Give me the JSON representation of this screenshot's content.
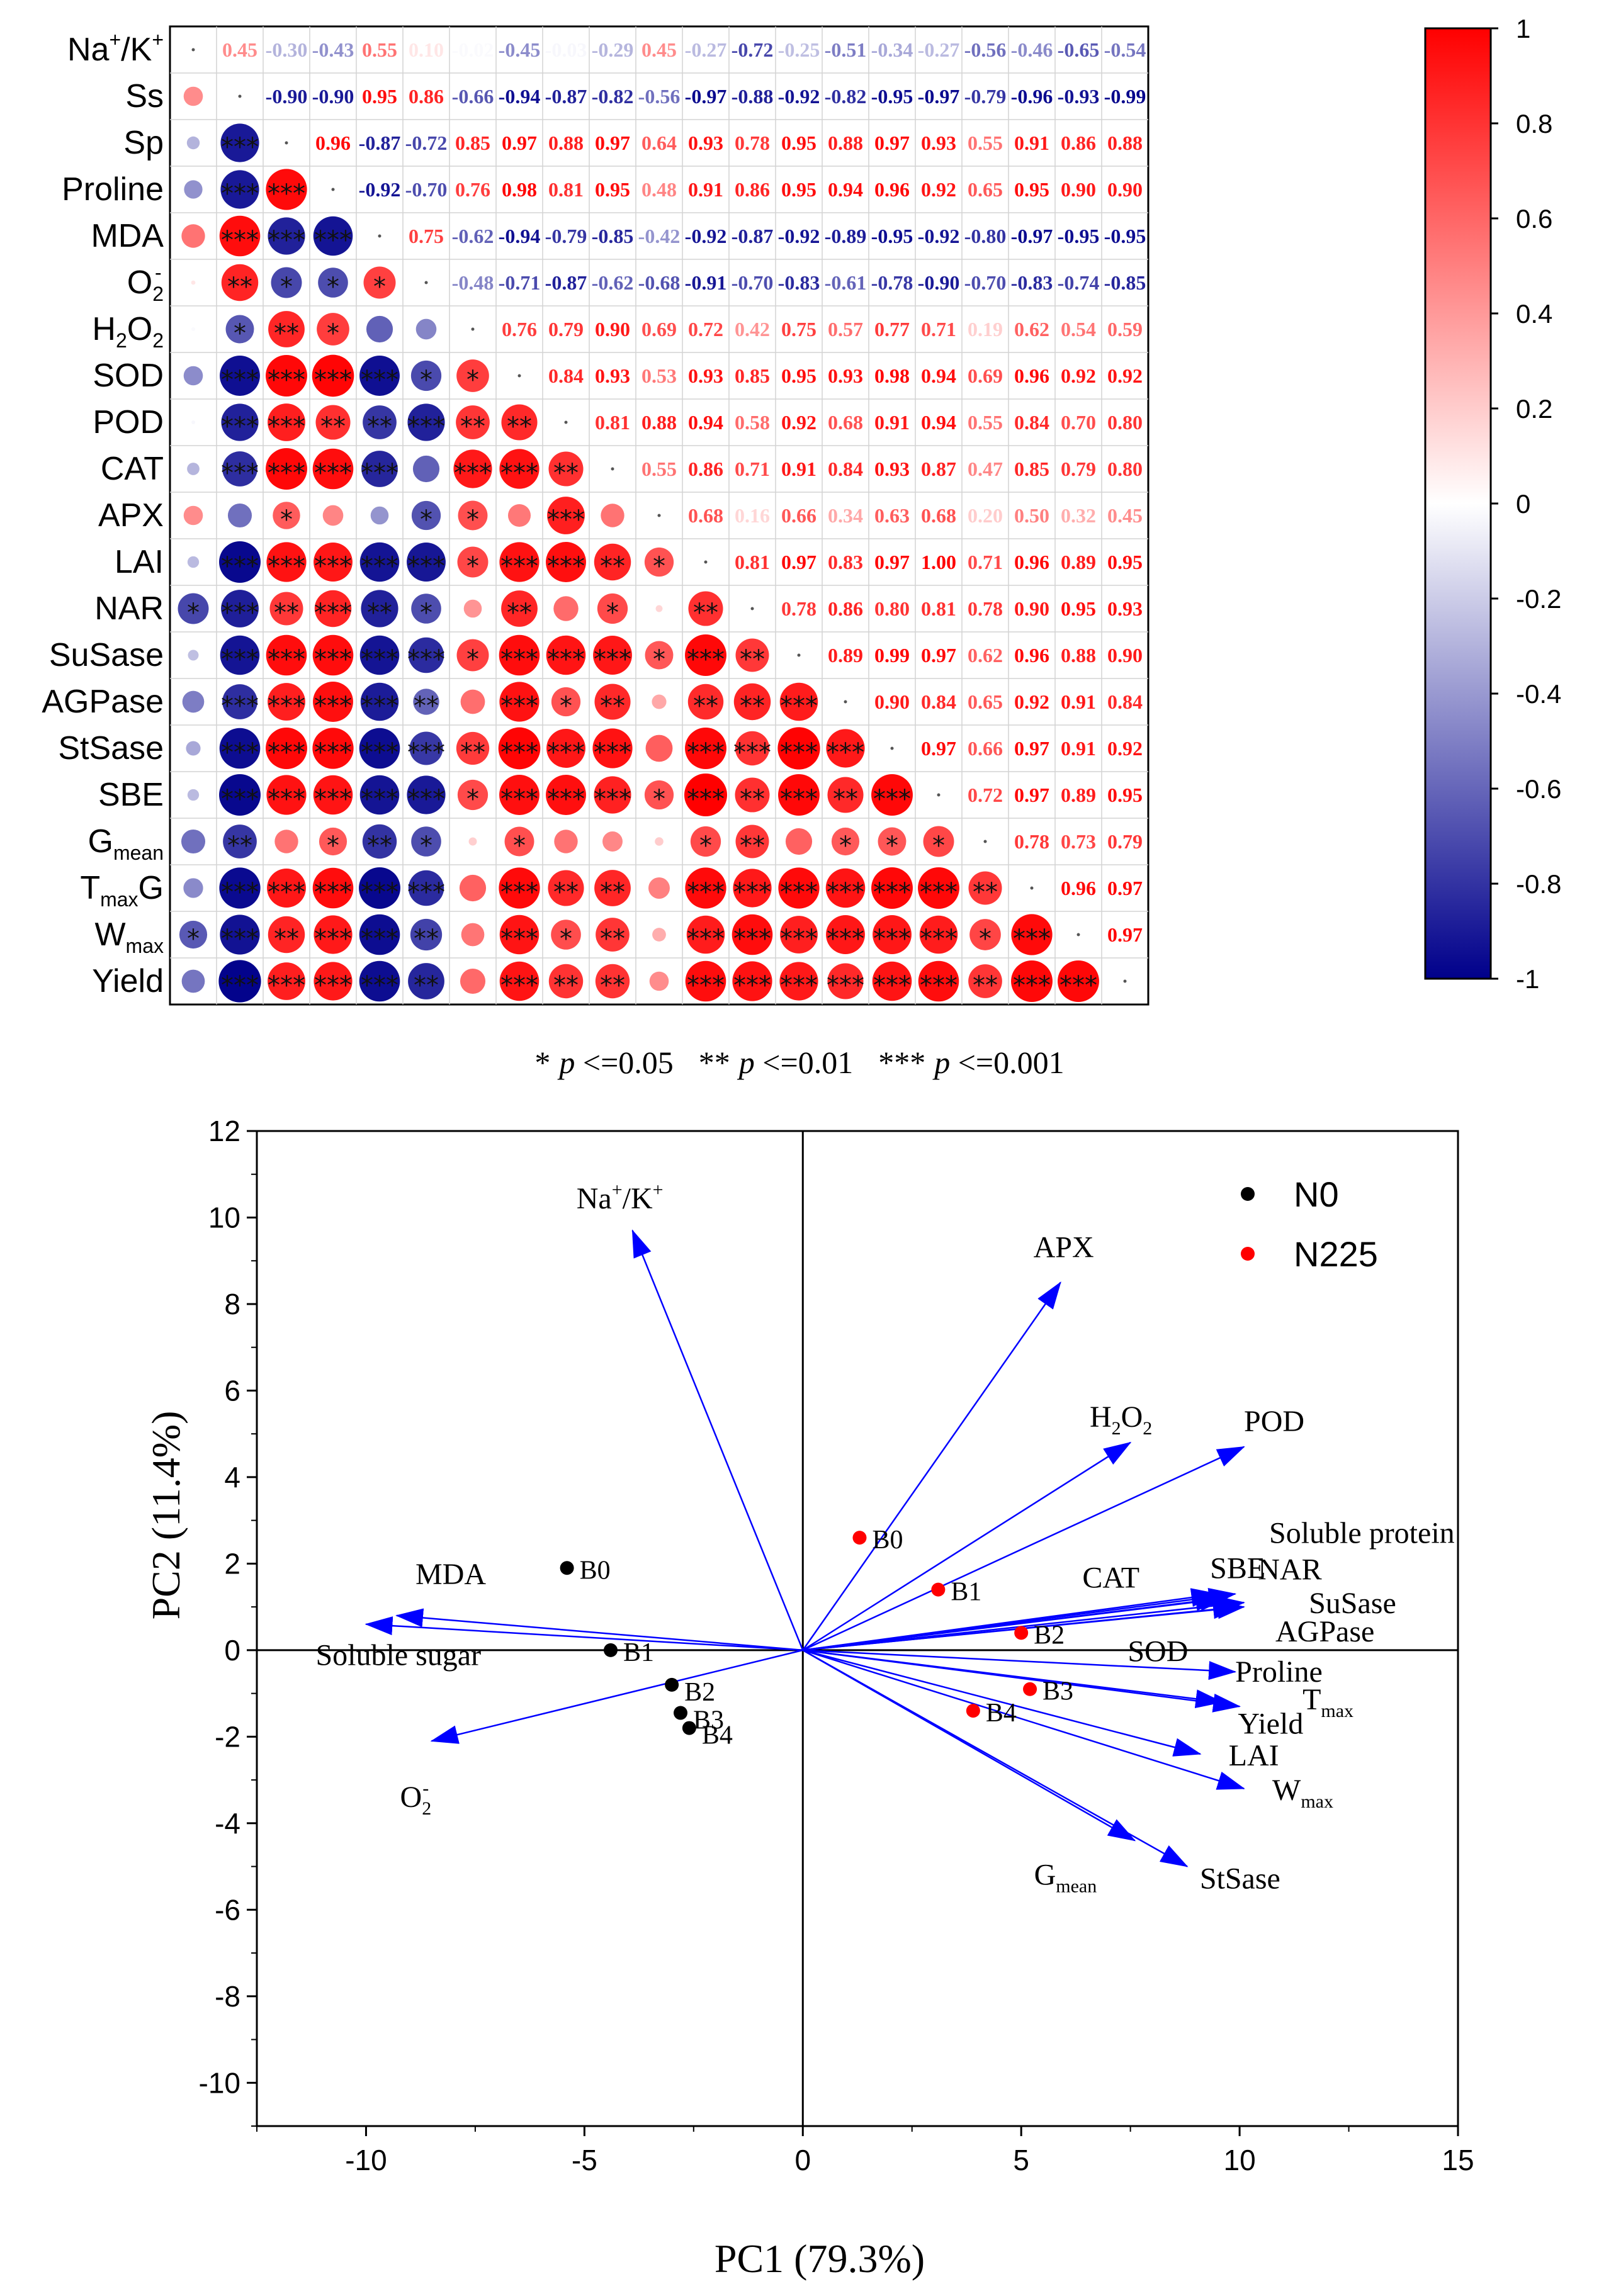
{
  "chart_data": [
    {
      "type": "heatmap",
      "title": "",
      "variables": [
        "Na+/K+",
        "Ss",
        "Sp",
        "Proline",
        "MDA",
        "O2-",
        "H2O2",
        "SOD",
        "POD",
        "CAT",
        "APX",
        "LAI",
        "NAR",
        "SuSase",
        "AGPase",
        "StSase",
        "SBE",
        "Gmean",
        "TmaxG",
        "Wmax",
        "Yield"
      ],
      "row_labels": [
        {
          "main": "Na",
          "sup": "+",
          "tail": "/K",
          "sup2": "+"
        },
        {
          "main": "Ss"
        },
        {
          "main": "Sp"
        },
        {
          "main": "Proline"
        },
        {
          "main": "MDA"
        },
        {
          "main": "O",
          "sub": "2",
          "sup": "-"
        },
        {
          "main": "H",
          "sub": "2",
          "tail": "O",
          "sub2": "2"
        },
        {
          "main": "SOD"
        },
        {
          "main": "POD"
        },
        {
          "main": "CAT"
        },
        {
          "main": "APX"
        },
        {
          "main": "LAI"
        },
        {
          "main": "NAR"
        },
        {
          "main": "SuSase"
        },
        {
          "main": "AGPase"
        },
        {
          "main": "StSase"
        },
        {
          "main": "SBE"
        },
        {
          "main": "G",
          "sub": "mean"
        },
        {
          "main": "T",
          "sub": "max",
          "tail": "G"
        },
        {
          "main": "W",
          "sub": "max"
        },
        {
          "main": "Yield"
        }
      ],
      "upper_values": [
        [
          0.45,
          -0.3,
          -0.43,
          0.55,
          0.1,
          -0.02,
          -0.45,
          -0.03,
          -0.29,
          0.45,
          -0.27,
          -0.72,
          -0.25,
          -0.51,
          -0.34,
          -0.27,
          -0.56,
          -0.46,
          -0.65,
          -0.54
        ],
        [
          -0.9,
          -0.9,
          0.95,
          0.86,
          -0.66,
          -0.94,
          -0.87,
          -0.82,
          -0.56,
          -0.97,
          -0.88,
          -0.92,
          -0.82,
          -0.95,
          -0.97,
          -0.79,
          -0.96,
          -0.93,
          -0.99
        ],
        [
          0.96,
          -0.87,
          -0.72,
          0.85,
          0.97,
          0.88,
          0.97,
          0.64,
          0.93,
          0.78,
          0.95,
          0.88,
          0.97,
          0.93,
          0.55,
          0.91,
          0.86,
          0.88
        ],
        [
          -0.92,
          -0.7,
          0.76,
          0.98,
          0.81,
          0.95,
          0.48,
          0.91,
          0.86,
          0.95,
          0.94,
          0.96,
          0.92,
          0.65,
          0.95,
          0.9,
          0.9
        ],
        [
          0.75,
          -0.62,
          -0.94,
          -0.79,
          -0.85,
          -0.42,
          -0.92,
          -0.87,
          -0.92,
          -0.89,
          -0.95,
          -0.92,
          -0.8,
          -0.97,
          -0.95,
          -0.95
        ],
        [
          -0.48,
          -0.71,
          -0.87,
          -0.62,
          -0.68,
          -0.91,
          -0.7,
          -0.83,
          -0.61,
          -0.78,
          -0.9,
          -0.7,
          -0.83,
          -0.74,
          -0.85
        ],
        [
          0.76,
          0.79,
          0.9,
          0.69,
          0.72,
          0.42,
          0.75,
          0.57,
          0.77,
          0.71,
          0.19,
          0.62,
          0.54,
          0.59
        ],
        [
          0.84,
          0.93,
          0.53,
          0.93,
          0.85,
          0.95,
          0.93,
          0.98,
          0.94,
          0.69,
          0.96,
          0.92,
          0.92
        ],
        [
          0.81,
          0.88,
          0.94,
          0.58,
          0.92,
          0.68,
          0.91,
          0.94,
          0.55,
          0.84,
          0.7,
          0.8
        ],
        [
          0.55,
          0.86,
          0.71,
          0.91,
          0.84,
          0.93,
          0.87,
          0.47,
          0.85,
          0.79,
          0.8
        ],
        [
          0.68,
          0.16,
          0.66,
          0.34,
          0.63,
          0.68,
          0.2,
          0.5,
          0.32,
          0.45
        ],
        [
          0.81,
          0.97,
          0.83,
          0.97,
          1.0,
          0.71,
          0.96,
          0.89,
          0.95
        ],
        [
          0.78,
          0.86,
          0.8,
          0.81,
          0.78,
          0.9,
          0.95,
          0.93
        ],
        [
          0.89,
          0.99,
          0.97,
          0.62,
          0.96,
          0.88,
          0.9
        ],
        [
          0.9,
          0.84,
          0.65,
          0.92,
          0.91,
          0.84
        ],
        [
          0.97,
          0.66,
          0.97,
          0.91,
          0.92
        ],
        [
          0.72,
          0.97,
          0.89,
          0.95
        ],
        [
          0.78,
          0.73,
          0.79
        ],
        [
          0.96,
          0.97
        ],
        [
          0.97
        ],
        []
      ],
      "significance_stars": [
        [],
        [
          0
        ],
        [
          0,
          3
        ],
        [
          0,
          3,
          3
        ],
        [
          0,
          3,
          3,
          3
        ],
        [
          0,
          2,
          1,
          1,
          1
        ],
        [
          0,
          1,
          2,
          1,
          0,
          0
        ],
        [
          0,
          3,
          3,
          3,
          3,
          1,
          1
        ],
        [
          0,
          3,
          3,
          2,
          2,
          3,
          2,
          2
        ],
        [
          0,
          3,
          3,
          3,
          3,
          0,
          3,
          3,
          2
        ],
        [
          0,
          0,
          1,
          0,
          0,
          1,
          1,
          0,
          3,
          0
        ],
        [
          0,
          3,
          3,
          3,
          3,
          3,
          1,
          3,
          3,
          2,
          1
        ],
        [
          1,
          3,
          2,
          3,
          2,
          1,
          0,
          2,
          0,
          1,
          0,
          2
        ],
        [
          0,
          3,
          3,
          3,
          3,
          3,
          1,
          3,
          3,
          3,
          1,
          3,
          2
        ],
        [
          0,
          3,
          3,
          3,
          3,
          2,
          0,
          3,
          1,
          2,
          0,
          2,
          2,
          3
        ],
        [
          0,
          3,
          3,
          3,
          3,
          3,
          2,
          3,
          3,
          3,
          0,
          3,
          3,
          3,
          3
        ],
        [
          0,
          3,
          3,
          3,
          3,
          3,
          1,
          3,
          3,
          3,
          1,
          3,
          2,
          3,
          2,
          3
        ],
        [
          0,
          2,
          0,
          1,
          2,
          1,
          0,
          1,
          0,
          0,
          0,
          1,
          2,
          0,
          1,
          1,
          1
        ],
        [
          0,
          3,
          3,
          3,
          3,
          3,
          0,
          3,
          2,
          2,
          0,
          3,
          3,
          3,
          3,
          3,
          3,
          2
        ],
        [
          1,
          3,
          2,
          3,
          3,
          2,
          0,
          3,
          1,
          2,
          0,
          3,
          3,
          3,
          3,
          3,
          3,
          1,
          3
        ],
        [
          0,
          3,
          3,
          3,
          3,
          2,
          0,
          3,
          2,
          2,
          0,
          3,
          3,
          3,
          3,
          3,
          3,
          2,
          3,
          3
        ]
      ],
      "colorbar": {
        "range": [
          -1,
          1
        ],
        "ticks": [
          "1",
          "0.8",
          "0.6",
          "0.4",
          "0.2",
          "0",
          "-0.2",
          "-0.4",
          "-0.6",
          "-0.8",
          "-1"
        ],
        "colors": {
          "negative": "#00008b",
          "neutral": "#ffffff",
          "positive": "#ff0000"
        }
      },
      "significance_note": [
        {
          "stars": "*",
          "p": "p",
          "rest": " <=0.05"
        },
        {
          "stars": "**",
          "p": "p",
          "rest": " <=0.01"
        },
        {
          "stars": "***",
          "p": "p",
          "rest": " <=0.001"
        }
      ]
    },
    {
      "type": "scatter",
      "subtype": "PCA biplot",
      "xlabel": "PC1 (79.3%)",
      "ylabel": "PC2 (11.4%)",
      "xlim": [
        -12.5,
        15
      ],
      "ylim": [
        -11,
        12
      ],
      "xticks": [
        -10,
        -5,
        0,
        5,
        10,
        15
      ],
      "yticks": [
        12,
        10,
        8,
        6,
        4,
        2,
        0,
        -2,
        -4,
        -6,
        -8,
        -10
      ],
      "legend": {
        "position": "top-right",
        "entries": [
          {
            "name": "N0",
            "color": "#000000"
          },
          {
            "name": "N225",
            "color": "#ff0000"
          }
        ]
      },
      "series": [
        {
          "name": "N0",
          "color": "#000000",
          "points": [
            {
              "label": "B0",
              "x": -5.4,
              "y": 1.9
            },
            {
              "label": "B1",
              "x": -4.4,
              "y": 0.0
            },
            {
              "label": "B2",
              "x": -3.0,
              "y": -0.8
            },
            {
              "label": "B3",
              "x": -2.8,
              "y": -1.45
            },
            {
              "label": "B4",
              "x": -2.6,
              "y": -1.8
            }
          ]
        },
        {
          "name": "N225",
          "color": "#ff0000",
          "points": [
            {
              "label": "B0",
              "x": 1.3,
              "y": 2.6
            },
            {
              "label": "B1",
              "x": 3.1,
              "y": 1.4
            },
            {
              "label": "B2",
              "x": 5.0,
              "y": 0.4
            },
            {
              "label": "B3",
              "x": 5.2,
              "y": -0.9
            },
            {
              "label": "B4",
              "x": 3.9,
              "y": -1.4
            }
          ]
        }
      ],
      "vectors": [
        {
          "name": "Na+/K+",
          "x": -3.9,
          "y": 9.7
        },
        {
          "name": "APX",
          "x": 5.9,
          "y": 8.5
        },
        {
          "name": "H2O2",
          "x": 7.5,
          "y": 4.8
        },
        {
          "name": "POD",
          "x": 10.1,
          "y": 4.7
        },
        {
          "name": "CAT",
          "x": 9.5,
          "y": 1.3
        },
        {
          "name": "SBE",
          "x": 9.9,
          "y": 1.3
        },
        {
          "name": "NAR",
          "x": 9.7,
          "y": 1.2
        },
        {
          "name": "SuSase",
          "x": 10.0,
          "y": 1.0
        },
        {
          "name": "Soluble protein",
          "x": 10.1,
          "y": 1.1
        },
        {
          "name": "AGPase",
          "x": 10.1,
          "y": 1.0
        },
        {
          "name": "SOD",
          "x": 9.6,
          "y": 1.2
        },
        {
          "name": "Proline",
          "x": 9.9,
          "y": -0.5
        },
        {
          "name": "Tmax",
          "x": 10.0,
          "y": -1.3
        },
        {
          "name": "Yield",
          "x": 9.6,
          "y": -1.2
        },
        {
          "name": "LAI",
          "x": 9.1,
          "y": -2.4
        },
        {
          "name": "Wmax",
          "x": 10.1,
          "y": -3.2
        },
        {
          "name": "Gmean",
          "x": 7.6,
          "y": -4.4
        },
        {
          "name": "StSase",
          "x": 8.8,
          "y": -5.0
        },
        {
          "name": "MDA",
          "x": -9.3,
          "y": 0.8
        },
        {
          "name": "Soluble sugar",
          "x": -10.0,
          "y": 0.6
        },
        {
          "name": "O2-",
          "x": -8.5,
          "y": -2.1
        }
      ],
      "vector_labels": [
        {
          "name": "Na+/K+",
          "main": "Na",
          "sup": "+",
          "tail": "/K",
          "sup2": "+"
        },
        {
          "name": "APX",
          "main": "APX"
        },
        {
          "name": "H2O2",
          "main": "H",
          "sub": "2",
          "tail": "O",
          "sub2": "2"
        },
        {
          "name": "POD",
          "main": "POD"
        },
        {
          "name": "Soluble protein",
          "main": "Soluble protein"
        },
        {
          "name": "CAT",
          "main": "CAT"
        },
        {
          "name": "SBE",
          "main": "SBE"
        },
        {
          "name": "NAR",
          "main": "NAR"
        },
        {
          "name": "SuSase",
          "main": "SuSase"
        },
        {
          "name": "AGPase",
          "main": "AGPase"
        },
        {
          "name": "SOD",
          "main": "SOD"
        },
        {
          "name": "Proline",
          "main": "Proline"
        },
        {
          "name": "Tmax",
          "main": "T",
          "sub": "max"
        },
        {
          "name": "Yield",
          "main": "Yield"
        },
        {
          "name": "LAI",
          "main": "LAI"
        },
        {
          "name": "Wmax",
          "main": "W",
          "sub": "max"
        },
        {
          "name": "Gmean",
          "main": "G",
          "sub": "mean"
        },
        {
          "name": "StSase",
          "main": "StSase"
        },
        {
          "name": "MDA",
          "main": "MDA"
        },
        {
          "name": "Soluble sugar",
          "main": "Soluble sugar"
        },
        {
          "name": "O2-",
          "main": "O",
          "sub": "2",
          "sup": "-"
        }
      ]
    }
  ]
}
